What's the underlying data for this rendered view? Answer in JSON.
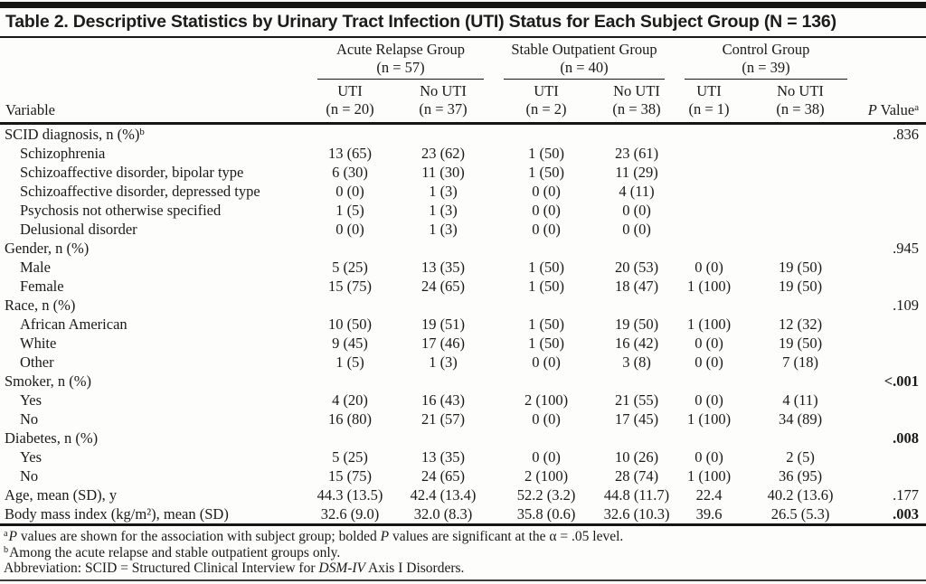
{
  "colors": {
    "rule": "#161616",
    "text": "#1a1a1a",
    "background": "#fdfdfc"
  },
  "table": {
    "title": "Table 2. Descriptive Statistics by Urinary Tract Infection (UTI) Status for Each Subject Group (N = 136)",
    "columns": {
      "variable_header": "Variable",
      "p_value_header": [
        {
          "t": "P",
          "i": true
        },
        {
          "t": " Value"
        },
        {
          "t": "a",
          "sup": true
        }
      ],
      "groups": [
        {
          "name": "Acute Relapse Group",
          "n": "(n = 57)"
        },
        {
          "name": "Stable Outpatient Group",
          "n": "(n = 40)"
        },
        {
          "name": "Control Group",
          "n": "(n = 39)"
        }
      ],
      "subcolumns": [
        {
          "label": "UTI",
          "n": "(n = 20)"
        },
        {
          "label": "No UTI",
          "n": "(n = 37)"
        },
        {
          "label": "UTI",
          "n": "(n = 2)"
        },
        {
          "label": "No UTI",
          "n": "(n = 38)"
        },
        {
          "label": "UTI",
          "n": "(n = 1)"
        },
        {
          "label": "No UTI",
          "n": "(n = 38)"
        }
      ]
    },
    "rows": [
      {
        "label": "SCID diagnosis, n (%)",
        "sup": "b",
        "indent": 0,
        "values": [
          "",
          "",
          "",
          "",
          "",
          ""
        ],
        "p": ".836",
        "p_bold": false
      },
      {
        "label": "Schizophrenia",
        "indent": 1,
        "values": [
          "13 (65)",
          "23 (62)",
          "1 (50)",
          "23 (61)",
          "",
          ""
        ],
        "p": "",
        "p_bold": false
      },
      {
        "label": "Schizoaffective disorder, bipolar type",
        "indent": 1,
        "values": [
          "6 (30)",
          "11 (30)",
          "1 (50)",
          "11 (29)",
          "",
          ""
        ],
        "p": "",
        "p_bold": false
      },
      {
        "label": "Schizoaffective disorder, depressed type",
        "indent": 1,
        "values": [
          "0 (0)",
          "1 (3)",
          "0 (0)",
          "4 (11)",
          "",
          ""
        ],
        "p": "",
        "p_bold": false
      },
      {
        "label": "Psychosis not otherwise specified",
        "indent": 1,
        "values": [
          "1 (5)",
          "1 (3)",
          "0 (0)",
          "0 (0)",
          "",
          ""
        ],
        "p": "",
        "p_bold": false
      },
      {
        "label": "Delusional disorder",
        "indent": 1,
        "values": [
          "0 (0)",
          "1 (3)",
          "0 (0)",
          "0 (0)",
          "",
          ""
        ],
        "p": "",
        "p_bold": false
      },
      {
        "label": "Gender, n (%)",
        "indent": 0,
        "values": [
          "",
          "",
          "",
          "",
          "",
          ""
        ],
        "p": ".945",
        "p_bold": false
      },
      {
        "label": "Male",
        "indent": 1,
        "values": [
          "5 (25)",
          "13 (35)",
          "1 (50)",
          "20 (53)",
          "0 (0)",
          "19 (50)"
        ],
        "p": "",
        "p_bold": false
      },
      {
        "label": "Female",
        "indent": 1,
        "values": [
          "15 (75)",
          "24 (65)",
          "1 (50)",
          "18 (47)",
          "1 (100)",
          "19 (50)"
        ],
        "p": "",
        "p_bold": false
      },
      {
        "label": "Race, n (%)",
        "indent": 0,
        "values": [
          "",
          "",
          "",
          "",
          "",
          ""
        ],
        "p": ".109",
        "p_bold": false
      },
      {
        "label": "African American",
        "indent": 1,
        "values": [
          "10 (50)",
          "19 (51)",
          "1 (50)",
          "19 (50)",
          "1 (100)",
          "12 (32)"
        ],
        "p": "",
        "p_bold": false
      },
      {
        "label": "White",
        "indent": 1,
        "values": [
          "9 (45)",
          "17 (46)",
          "1 (50)",
          "16 (42)",
          "0 (0)",
          "19 (50)"
        ],
        "p": "",
        "p_bold": false
      },
      {
        "label": "Other",
        "indent": 1,
        "values": [
          "1 (5)",
          "1 (3)",
          "0 (0)",
          "3 (8)",
          "0 (0)",
          "7 (18)"
        ],
        "p": "",
        "p_bold": false
      },
      {
        "label": "Smoker, n (%)",
        "indent": 0,
        "values": [
          "",
          "",
          "",
          "",
          "",
          ""
        ],
        "p": "<.001",
        "p_bold": true
      },
      {
        "label": "Yes",
        "indent": 1,
        "values": [
          "4 (20)",
          "16 (43)",
          "2 (100)",
          "21 (55)",
          "0 (0)",
          "4 (11)"
        ],
        "p": "",
        "p_bold": false
      },
      {
        "label": "No",
        "indent": 1,
        "values": [
          "16 (80)",
          "21 (57)",
          "0 (0)",
          "17 (45)",
          "1 (100)",
          "34 (89)"
        ],
        "p": "",
        "p_bold": false
      },
      {
        "label": "Diabetes, n (%)",
        "indent": 0,
        "values": [
          "",
          "",
          "",
          "",
          "",
          ""
        ],
        "p": ".008",
        "p_bold": true
      },
      {
        "label": "Yes",
        "indent": 1,
        "values": [
          "5 (25)",
          "13 (35)",
          "0 (0)",
          "10 (26)",
          "0 (0)",
          "2 (5)"
        ],
        "p": "",
        "p_bold": false
      },
      {
        "label": "No",
        "indent": 1,
        "values": [
          "15 (75)",
          "24 (65)",
          "2 (100)",
          "28 (74)",
          "1 (100)",
          "36 (95)"
        ],
        "p": "",
        "p_bold": false
      },
      {
        "label": "Age, mean (SD), y",
        "indent": 0,
        "values": [
          "44.3 (13.5)",
          "42.4 (13.4)",
          "52.2 (3.2)",
          "44.8 (11.7)",
          "22.4",
          "40.2 (13.6)"
        ],
        "p": ".177",
        "p_bold": false
      },
      {
        "label": "Body mass index (kg/m²), mean (SD)",
        "indent": 0,
        "values": [
          "32.6 (9.0)",
          "32.0 (8.3)",
          "35.8 (0.6)",
          "32.6 (10.3)",
          "39.6",
          "26.5 (5.3)"
        ],
        "p": ".003",
        "p_bold": true
      }
    ],
    "footnotes": [
      [
        {
          "t": "a",
          "sup": true
        },
        {
          "t": "P",
          "i": true
        },
        {
          "t": " values are shown for the association with subject group; bolded "
        },
        {
          "t": "P",
          "i": true
        },
        {
          "t": " values are significant at the α = .05 level."
        }
      ],
      [
        {
          "t": "b",
          "sup": true
        },
        {
          "t": "Among the acute relapse and stable outpatient groups only."
        }
      ],
      [
        {
          "t": "Abbreviation: SCID = Structured Clinical Interview for "
        },
        {
          "t": "DSM-IV",
          "i": true
        },
        {
          "t": " Axis I Disorders."
        }
      ]
    ]
  }
}
